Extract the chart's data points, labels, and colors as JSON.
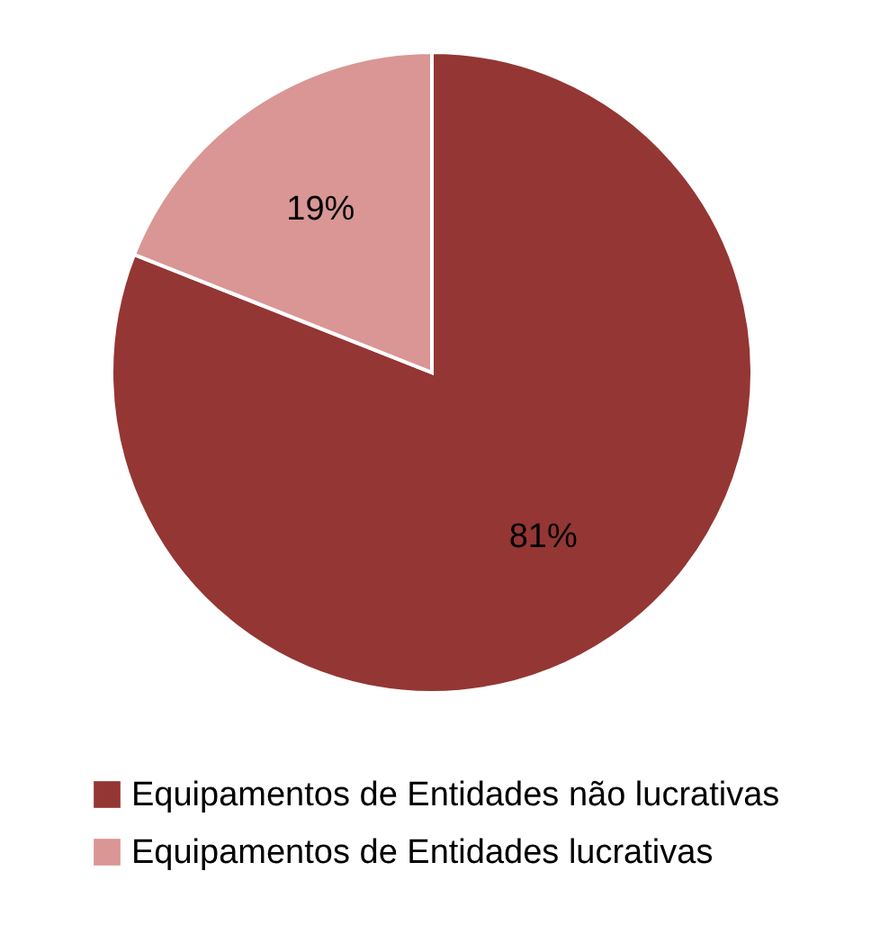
{
  "chart_data": {
    "type": "pie",
    "categories": [
      "Equipamentos de Entidades não lucrativas",
      "Equipamentos de Entidades lucrativas"
    ],
    "values": [
      81,
      19
    ],
    "colors": [
      "#943634",
      "#d99694"
    ],
    "value_labels": [
      "81%",
      "19%"
    ],
    "legend": "bottom"
  }
}
